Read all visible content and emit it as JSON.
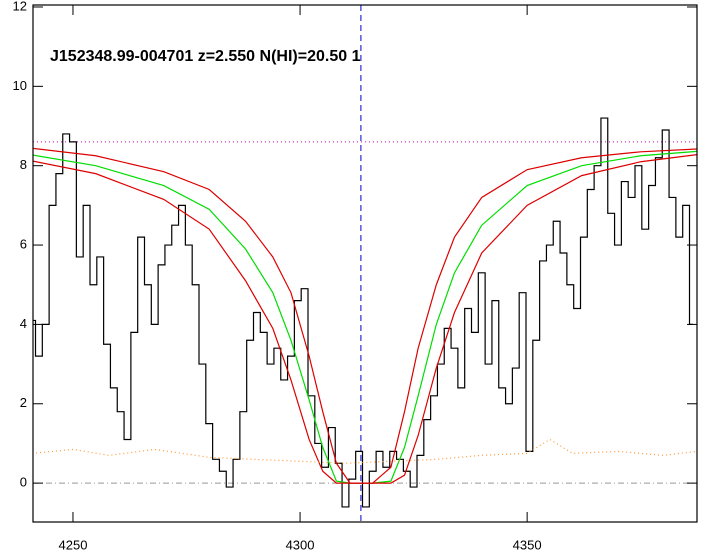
{
  "chart_data": {
    "type": "line",
    "title": "J152348.99-004701 z=2.550 N(HI)=20.50 1",
    "xlim": [
      4241.2,
      4387.4
    ],
    "ylim": [
      -0.98,
      12.05
    ],
    "xticks": [
      4250,
      4300,
      4350
    ],
    "yticks": [
      0,
      2,
      4,
      6,
      8,
      10,
      12
    ],
    "series": [
      {
        "color": "#000000",
        "style": "step",
        "x": [
          4241,
          4242.5,
          4244,
          4245.5,
          4247,
          4248.5,
          4250,
          4251.5,
          4253,
          4254.5,
          4256,
          4257.5,
          4259,
          4260.5,
          4262,
          4263.5,
          4265,
          4266.5,
          4268,
          4269.5,
          4271,
          4272.5,
          4274,
          4275.5,
          4277,
          4278.5,
          4280,
          4281.5,
          4283,
          4284.5,
          4286,
          4287.5,
          4289,
          4290.5,
          4292,
          4293.5,
          4295,
          4296.5,
          4298,
          4299.5,
          4301,
          4302.5,
          4304,
          4305.5,
          4307,
          4308.5,
          4310,
          4311.5,
          4313,
          4314.5,
          4316,
          4317.5,
          4319,
          4320.5,
          4322,
          4323.5,
          4325,
          4326.5,
          4328,
          4329.5,
          4331,
          4332.5,
          4334,
          4335.5,
          4337,
          4338.5,
          4340,
          4341.5,
          4343,
          4344.5,
          4346,
          4347.5,
          4349,
          4350.5,
          4352,
          4353.5,
          4355,
          4356.5,
          4358,
          4359.5,
          4361,
          4362.5,
          4364,
          4365.5,
          4367,
          4368.5,
          4370,
          4371.5,
          4373,
          4374.5,
          4376,
          4377.5,
          4379,
          4380.5,
          4382,
          4383.5,
          4385,
          4386.5
        ],
        "values": [
          4.1,
          3.2,
          4.0,
          7.0,
          7.8,
          8.8,
          8.6,
          5.7,
          7.0,
          5.0,
          5.7,
          3.5,
          2.4,
          1.8,
          1.1,
          3.8,
          6.2,
          5.0,
          4.0,
          5.5,
          6.0,
          6.5,
          7.0,
          6.0,
          5.0,
          3.0,
          1.5,
          0.6,
          0.3,
          -0.1,
          0.6,
          1.8,
          3.6,
          4.3,
          3.8,
          3.0,
          3.4,
          2.6,
          3.2,
          4.6,
          4.9,
          2.2,
          1.0,
          0.4,
          1.4,
          0.5,
          -0.6,
          0.1,
          0.8,
          -0.6,
          0.3,
          0.8,
          0.4,
          0.8,
          0.6,
          0.3,
          -0.1,
          0.7,
          1.6,
          2.2,
          3.0,
          3.9,
          3.4,
          2.4,
          4.4,
          3.8,
          5.3,
          3.0,
          4.6,
          2.4,
          2.0,
          2.9,
          4.8,
          0.8,
          3.6,
          5.6,
          6.0,
          6.6,
          5.8,
          5.0,
          4.4,
          6.2,
          7.4,
          8.0,
          9.2,
          6.8,
          6.0,
          7.6,
          7.2,
          8.0,
          6.4,
          7.5,
          8.2,
          8.9,
          7.2,
          6.2,
          7.0,
          4.0
        ]
      },
      {
        "color": "#00dd00",
        "style": "solid",
        "x": [
          4241,
          4255,
          4270,
          4280,
          4288,
          4294,
          4298,
          4302,
          4305,
          4308,
          4311,
          4316,
          4320,
          4323,
          4326,
          4330,
          4334,
          4340,
          4350,
          4362,
          4375,
          4387.4
        ],
        "values": [
          8.27,
          8.0,
          7.5,
          6.9,
          5.9,
          4.8,
          3.6,
          2.1,
          0.9,
          0.05,
          0,
          0,
          0.05,
          0.9,
          2.2,
          4.0,
          5.3,
          6.5,
          7.5,
          8.0,
          8.25,
          8.36
        ]
      },
      {
        "color": "#dd0000",
        "style": "solid",
        "x": [
          4241,
          4255,
          4270,
          4280,
          4288,
          4294,
          4298,
          4302,
          4305,
          4308,
          4311,
          4316,
          4320,
          4323,
          4326,
          4330,
          4334,
          4340,
          4350,
          4362,
          4375,
          4387.4
        ],
        "values": [
          8.44,
          8.25,
          7.85,
          7.4,
          6.6,
          5.7,
          4.8,
          3.2,
          1.8,
          0.5,
          0,
          0,
          0.4,
          1.8,
          3.4,
          5.0,
          6.2,
          7.2,
          7.9,
          8.2,
          8.35,
          8.42
        ]
      },
      {
        "color": "#dd0000",
        "style": "solid",
        "x": [
          4241,
          4255,
          4270,
          4280,
          4288,
          4294,
          4298,
          4302,
          4305,
          4308,
          4311,
          4316,
          4320,
          4323,
          4326,
          4330,
          4334,
          4340,
          4350,
          4362,
          4375,
          4387.4
        ],
        "values": [
          8.12,
          7.8,
          7.15,
          6.4,
          5.1,
          3.9,
          2.6,
          1.1,
          0.3,
          0,
          0,
          0,
          0,
          0.2,
          1.2,
          2.9,
          4.3,
          5.8,
          7.0,
          7.75,
          8.1,
          8.28
        ]
      },
      {
        "color": "#ff9933",
        "style": "dotted",
        "x": [
          4241,
          4250,
          4258,
          4268,
          4280,
          4290,
          4300,
          4310,
          4320,
          4330,
          4340,
          4350,
          4355,
          4360,
          4370,
          4380,
          4387.4
        ],
        "values": [
          0.75,
          0.85,
          0.7,
          0.85,
          0.65,
          0.6,
          0.55,
          0.5,
          0.55,
          0.6,
          0.7,
          0.75,
          1.1,
          0.75,
          0.8,
          0.7,
          0.8
        ]
      }
    ],
    "hlines": [
      {
        "value": 8.6,
        "color": "#cc00cc",
        "style": "dotted"
      },
      {
        "value": 0,
        "color": "#999999",
        "style": "dashdot"
      }
    ],
    "vlines": [
      {
        "value": 4313.4,
        "color": "#0000cc",
        "style": "dashed"
      }
    ]
  }
}
